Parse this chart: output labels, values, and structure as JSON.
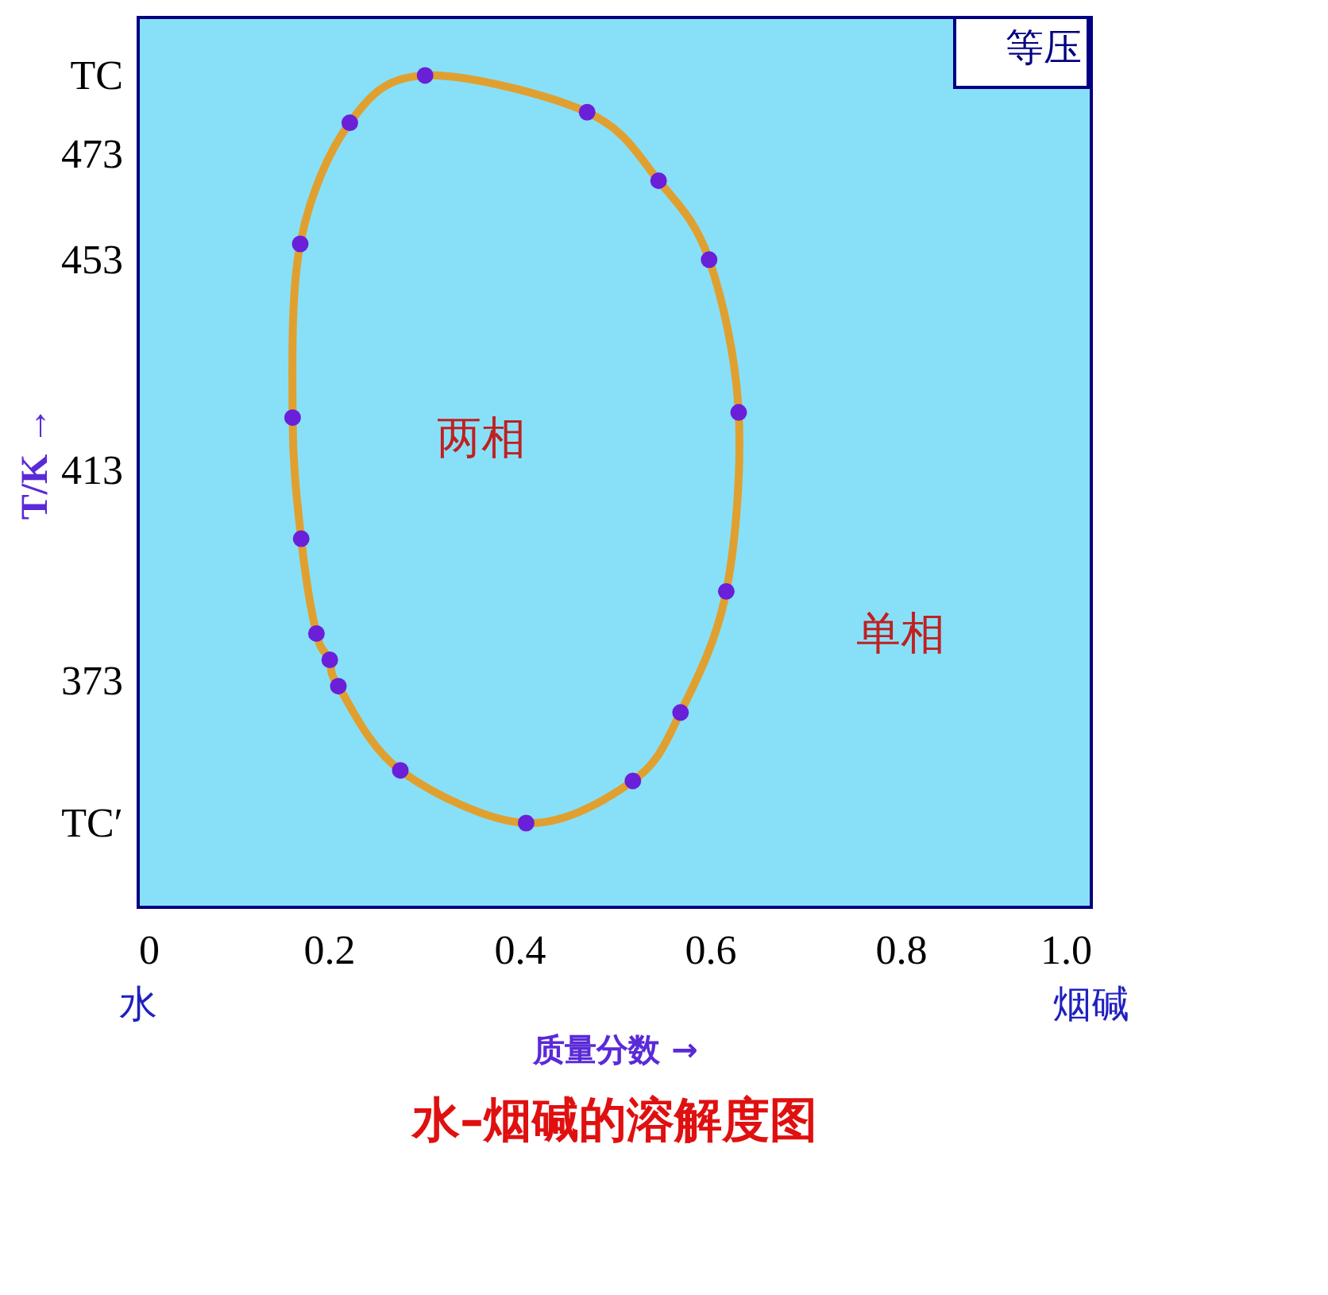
{
  "chart_data": {
    "type": "scatter",
    "title": "水–烟碱的溶解度图",
    "xlabel": "质量分数 →",
    "ylabel": "T/K →",
    "xlim": [
      0,
      1
    ],
    "xticks": [
      0,
      0.2,
      0.4,
      0.6,
      0.8,
      {
        "value": 1,
        "label": "1.0"
      }
    ],
    "ylim": [
      330,
      499
    ],
    "yticks": [
      {
        "value": 346,
        "label": "TC′"
      },
      373,
      413,
      453,
      473,
      {
        "value": 488,
        "label": "TC"
      }
    ],
    "grid": false,
    "legend": false,
    "marker": "circle",
    "series": [
      {
        "color": "#6a1fd8",
        "x": [
          0.301,
          0.222,
          0.17,
          0.162,
          0.171,
          0.187,
          0.201,
          0.21,
          0.275,
          0.407,
          0.519,
          0.569,
          0.617,
          0.63,
          0.599,
          0.546,
          0.471
        ],
        "values": [
          488,
          479,
          456,
          423,
          400,
          382,
          377,
          372,
          356,
          346,
          354,
          367,
          390,
          424,
          453,
          468,
          481
        ]
      }
    ],
    "annotations": [
      "两相",
      "单相",
      "等压",
      "水",
      "烟碱"
    ]
  }
}
